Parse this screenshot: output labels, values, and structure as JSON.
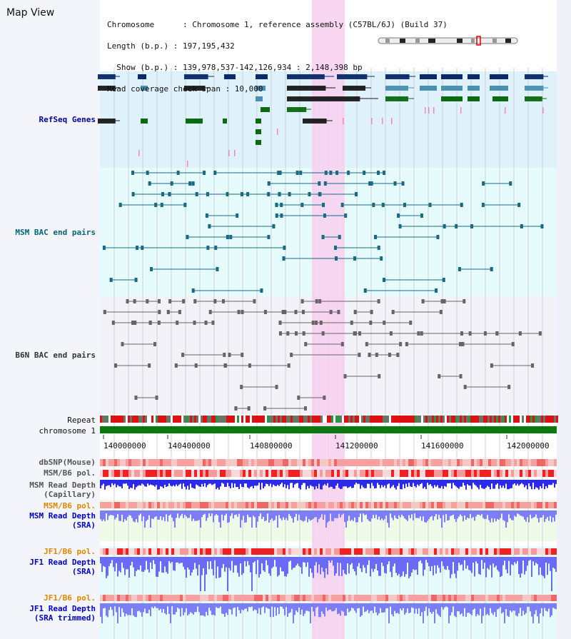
{
  "view_title": "Map View",
  "info": {
    "chromosome_line": "Chromosome      : Chromosome 1, reference assembly (C57BL/6J) (Build 37)",
    "length_line": "Length (b.p.) : 197,195,432",
    "show_line": "  Show (b.p.) : 139,978,537-142,126,934 : 2,148,398 bp",
    "coverage_line": "Read coverage check span : 10,000"
  },
  "tracks": {
    "refseq": "RefSeq Genes",
    "msm_bac": "MSM BAC end pairs",
    "b6n_bac": "B6N BAC end pairs",
    "repeat": "Repeat",
    "chromosome": "chromosome 1",
    "dbsnp": "dbSNP(Mouse)",
    "msm_b6_pol_1": "MSM/B6 pol.",
    "msm_read_depth_cap_1": "MSM Read Depth",
    "msm_read_depth_cap_2": "(Capillary)",
    "msm_b6_pol_2": "MSM/B6 pol.",
    "msm_read_depth_sra_1": "MSM Read Depth",
    "msm_read_depth_sra_2": "(SRA)",
    "jf1_b6_pol_1": "JF1/B6 pol.",
    "jf1_read_depth_sra_1": "JF1 Read Depth",
    "jf1_read_depth_sra_2": "(SRA)",
    "jf1_b6_pol_2": "JF1/B6 pol.",
    "jf1_read_depth_trim_1": "JF1 Read Depth",
    "jf1_read_depth_trim_2": "(SRA trimmed)"
  },
  "axis_ticks": [
    "140000000",
    "140400000",
    "140800000",
    "141200000",
    "141600000",
    "142000000"
  ],
  "colors": {
    "refseq_label": "#0000aa",
    "msm_label": "#006677",
    "b6n_label": "#333333",
    "orange_label": "#dd8800",
    "blue_label": "#0000cc",
    "highlight": "#f8d0f0",
    "depth_blue": "#3333ee",
    "depth_light": "#8888ff",
    "snp_red": "#ee2222",
    "gene_navy": "#0a2a6a",
    "gene_green": "#0a6a10",
    "gene_teal": "#4a90b0"
  }
}
